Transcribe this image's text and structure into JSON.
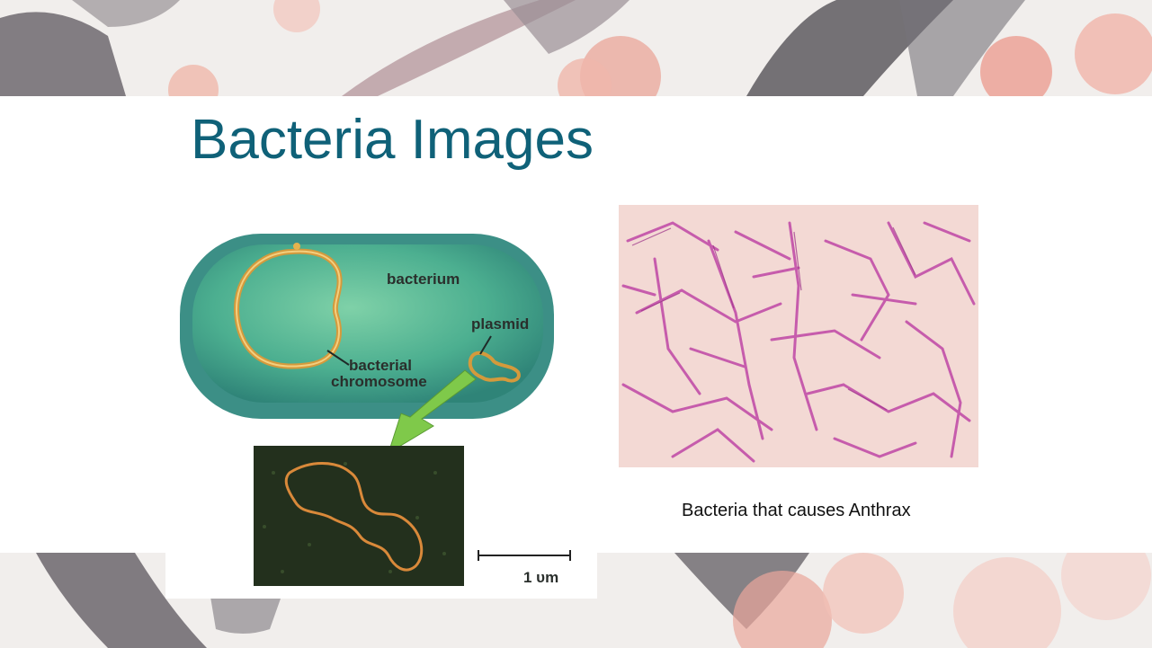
{
  "slide": {
    "title": "Bacteria Images"
  },
  "diagram": {
    "label_bacterium": "bacterium",
    "label_plasmid": "plasmid",
    "label_chromosome_line1": "bacterial",
    "label_chromosome_line2": "chromosome",
    "scale_label": "1 υm"
  },
  "micrograph": {
    "caption": "Bacteria that causes Anthrax"
  },
  "colors": {
    "title": "#0f6178",
    "cell": "#3c9a8c",
    "chromosome": "#d49a3c",
    "stain": "#c24fa8",
    "slide_background": "#ffffff"
  }
}
